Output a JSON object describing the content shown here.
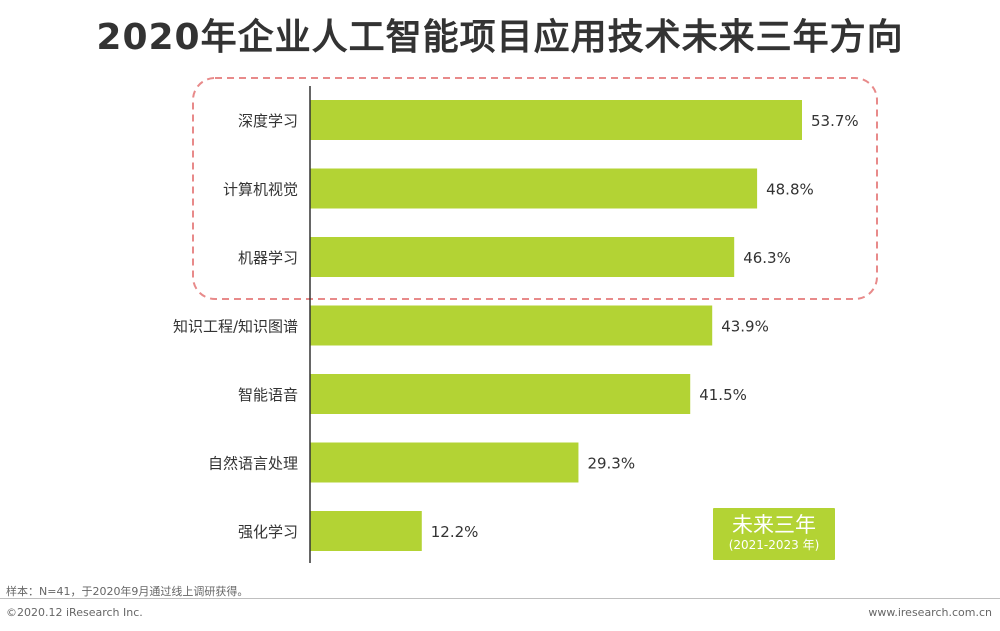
{
  "title": "2020年企业人工智能项目应用技术未来三年方向",
  "chart_data": {
    "type": "bar",
    "orientation": "horizontal",
    "categories": [
      "深度学习",
      "计算机视觉",
      "机器学习",
      "知识工程/知识图谱",
      "智能语音",
      "自然语言处理",
      "强化学习"
    ],
    "values": [
      53.7,
      48.8,
      46.3,
      43.9,
      41.5,
      29.3,
      12.2
    ],
    "value_labels": [
      "53.7%",
      "48.8%",
      "46.3%",
      "43.9%",
      "41.5%",
      "29.3%",
      "12.2%"
    ],
    "unit": "%",
    "xlim": [
      0,
      60
    ],
    "grid": false,
    "bar_color": "#b3d334",
    "highlight_color": "#e88a8a",
    "highlighted_categories": [
      "深度学习",
      "计算机视觉",
      "机器学习"
    ]
  },
  "legend": {
    "title": "未来三年",
    "subtitle": "(2021-2023 年)"
  },
  "note": "样本：N=41，于2020年9月通过线上调研获得。",
  "footer": {
    "copyright": "©2020.12 iResearch Inc.",
    "website": "www.iresearch.com.cn"
  }
}
